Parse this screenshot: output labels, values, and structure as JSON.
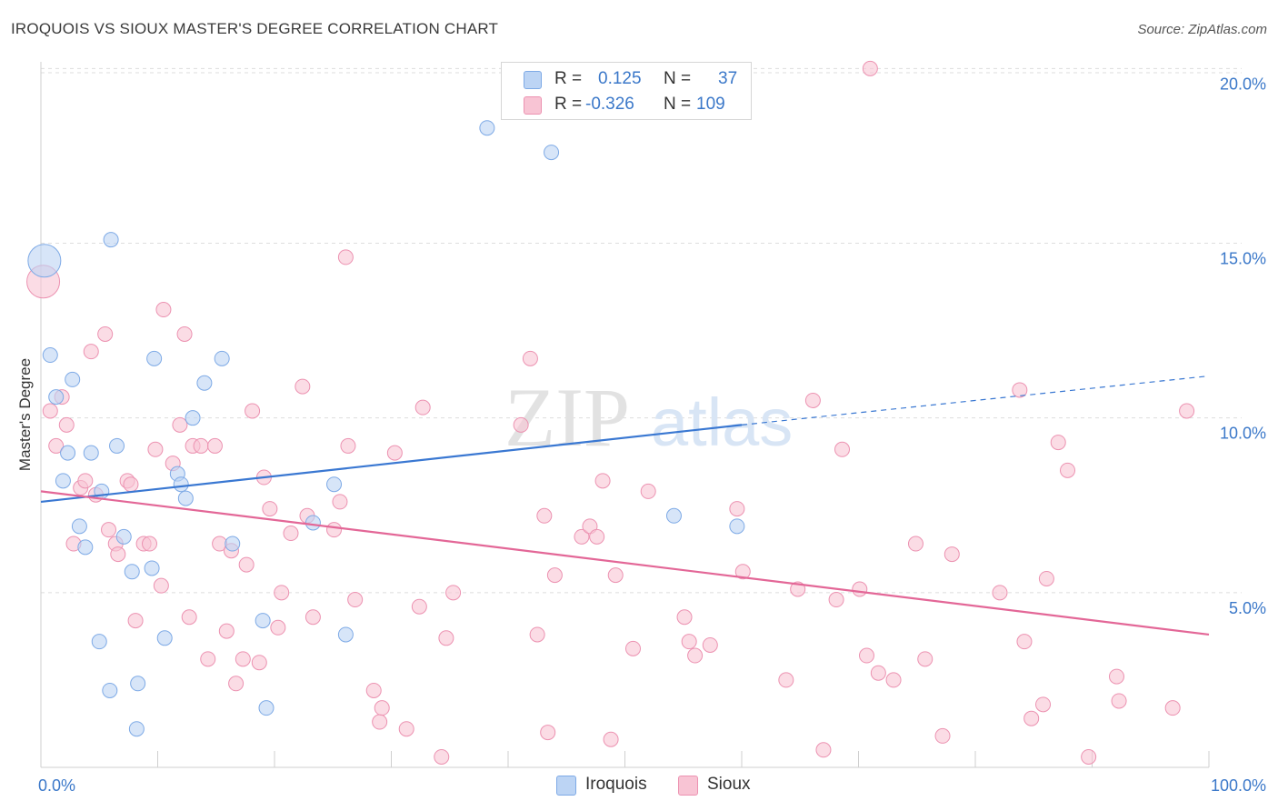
{
  "title": "IROQUOIS VS SIOUX MASTER'S DEGREE CORRELATION CHART",
  "source": "Source: ZipAtlas.com",
  "watermark": {
    "zip": "ZIP",
    "atlas": "atlas"
  },
  "colors": {
    "blue": "#3a78d2",
    "blue_fill": "#bcd4f4",
    "blue_stroke": "#7eaae6",
    "pink": "#e36797",
    "pink_fill": "#f8c4d4",
    "pink_stroke": "#ec92b1",
    "axis_label": "#3b78c9",
    "grid": "#dddddd"
  },
  "stats_legend": [
    {
      "r_label": "R =",
      "r_value": "0.125",
      "n_label": "N =",
      "n_value": "37"
    },
    {
      "r_label": "R =",
      "r_value": "-0.326",
      "n_label": "N =",
      "n_value": "109"
    }
  ],
  "legend": {
    "iroquois": "Iroquois",
    "sioux": "Sioux"
  },
  "chart_data": {
    "type": "scatter",
    "title": "IROQUOIS VS SIOUX MASTER'S DEGREE CORRELATION CHART",
    "xlabel": "",
    "ylabel": "Master's Degree",
    "xlim": [
      0,
      100
    ],
    "ylim": [
      0,
      20.4
    ],
    "x_tick_labels": [
      "0.0%",
      "100.0%"
    ],
    "y_ticks": [
      5,
      10,
      15,
      20
    ],
    "y_tick_labels": [
      "5.0%",
      "10.0%",
      "15.0%",
      "20.0%"
    ],
    "grid": true,
    "legend_position": "bottom",
    "series": [
      {
        "name": "Iroquois",
        "r": 0.125,
        "n": 37,
        "trend": {
          "x0": 0,
          "y0": 7.6,
          "x1": 60,
          "y1": 9.8,
          "dash_to_x": 100,
          "dash_to_y": 11.2
        },
        "points": [
          {
            "x": 0.3,
            "y": 14.5,
            "size": "large"
          },
          {
            "x": 0.8,
            "y": 11.8
          },
          {
            "x": 1.3,
            "y": 10.6
          },
          {
            "x": 2.7,
            "y": 11.1
          },
          {
            "x": 1.9,
            "y": 8.2
          },
          {
            "x": 2.3,
            "y": 9.0
          },
          {
            "x": 3.3,
            "y": 6.9
          },
          {
            "x": 3.8,
            "y": 6.3
          },
          {
            "x": 4.3,
            "y": 9.0
          },
          {
            "x": 5.0,
            "y": 3.6
          },
          {
            "x": 5.2,
            "y": 7.9
          },
          {
            "x": 6.0,
            "y": 15.1
          },
          {
            "x": 5.9,
            "y": 2.2
          },
          {
            "x": 6.5,
            "y": 9.2
          },
          {
            "x": 7.1,
            "y": 6.6
          },
          {
            "x": 7.8,
            "y": 5.6
          },
          {
            "x": 8.3,
            "y": 2.4
          },
          {
            "x": 8.2,
            "y": 1.1
          },
          {
            "x": 9.5,
            "y": 5.7
          },
          {
            "x": 9.7,
            "y": 11.7
          },
          {
            "x": 10.6,
            "y": 3.7
          },
          {
            "x": 11.7,
            "y": 8.4
          },
          {
            "x": 12.0,
            "y": 8.1
          },
          {
            "x": 12.4,
            "y": 7.7
          },
          {
            "x": 13.0,
            "y": 10.0
          },
          {
            "x": 14.0,
            "y": 11.0
          },
          {
            "x": 15.5,
            "y": 11.7
          },
          {
            "x": 16.4,
            "y": 6.4
          },
          {
            "x": 19.0,
            "y": 4.2
          },
          {
            "x": 19.3,
            "y": 1.7
          },
          {
            "x": 23.3,
            "y": 7.0
          },
          {
            "x": 25.1,
            "y": 8.1
          },
          {
            "x": 26.1,
            "y": 3.8
          },
          {
            "x": 38.2,
            "y": 18.3
          },
          {
            "x": 43.7,
            "y": 17.6
          },
          {
            "x": 54.2,
            "y": 7.2
          },
          {
            "x": 59.6,
            "y": 6.9
          }
        ]
      },
      {
        "name": "Sioux",
        "r": -0.326,
        "n": 109,
        "trend": {
          "x0": 0,
          "y0": 7.9,
          "x1": 100,
          "y1": 3.8
        },
        "points": [
          {
            "x": 0.2,
            "y": 13.9,
            "size": "large"
          },
          {
            "x": 0.8,
            "y": 10.2
          },
          {
            "x": 1.3,
            "y": 9.2
          },
          {
            "x": 1.8,
            "y": 10.6
          },
          {
            "x": 2.2,
            "y": 9.8
          },
          {
            "x": 2.8,
            "y": 6.4
          },
          {
            "x": 3.4,
            "y": 8.0
          },
          {
            "x": 3.8,
            "y": 8.2
          },
          {
            "x": 4.3,
            "y": 11.9
          },
          {
            "x": 4.7,
            "y": 7.8
          },
          {
            "x": 5.5,
            "y": 12.4
          },
          {
            "x": 5.8,
            "y": 6.8
          },
          {
            "x": 6.4,
            "y": 6.4
          },
          {
            "x": 6.6,
            "y": 6.1
          },
          {
            "x": 7.4,
            "y": 8.2
          },
          {
            "x": 7.7,
            "y": 8.1
          },
          {
            "x": 8.1,
            "y": 4.2
          },
          {
            "x": 8.8,
            "y": 6.4
          },
          {
            "x": 9.3,
            "y": 6.4
          },
          {
            "x": 9.8,
            "y": 9.1
          },
          {
            "x": 10.3,
            "y": 5.2
          },
          {
            "x": 10.5,
            "y": 13.1
          },
          {
            "x": 11.3,
            "y": 8.7
          },
          {
            "x": 11.9,
            "y": 9.8
          },
          {
            "x": 12.3,
            "y": 12.4
          },
          {
            "x": 12.7,
            "y": 4.3
          },
          {
            "x": 13.0,
            "y": 9.2
          },
          {
            "x": 13.7,
            "y": 9.2
          },
          {
            "x": 14.3,
            "y": 3.1
          },
          {
            "x": 14.9,
            "y": 9.2
          },
          {
            "x": 15.3,
            "y": 6.4
          },
          {
            "x": 15.9,
            "y": 3.9
          },
          {
            "x": 16.3,
            "y": 6.2
          },
          {
            "x": 16.7,
            "y": 2.4
          },
          {
            "x": 17.3,
            "y": 3.1
          },
          {
            "x": 17.6,
            "y": 5.8
          },
          {
            "x": 18.1,
            "y": 10.2
          },
          {
            "x": 18.7,
            "y": 3.0
          },
          {
            "x": 19.1,
            "y": 8.3
          },
          {
            "x": 19.6,
            "y": 7.4
          },
          {
            "x": 20.3,
            "y": 4.0
          },
          {
            "x": 20.6,
            "y": 5.0
          },
          {
            "x": 21.4,
            "y": 6.7
          },
          {
            "x": 22.4,
            "y": 10.9
          },
          {
            "x": 22.8,
            "y": 7.2
          },
          {
            "x": 23.3,
            "y": 4.3
          },
          {
            "x": 25.1,
            "y": 6.8
          },
          {
            "x": 25.6,
            "y": 7.6
          },
          {
            "x": 26.1,
            "y": 14.6
          },
          {
            "x": 26.3,
            "y": 9.2
          },
          {
            "x": 26.9,
            "y": 4.8
          },
          {
            "x": 28.5,
            "y": 2.2
          },
          {
            "x": 29.0,
            "y": 1.3
          },
          {
            "x": 29.2,
            "y": 1.7
          },
          {
            "x": 30.3,
            "y": 9.0
          },
          {
            "x": 31.3,
            "y": 1.1
          },
          {
            "x": 32.4,
            "y": 4.6
          },
          {
            "x": 32.7,
            "y": 10.3
          },
          {
            "x": 34.3,
            "y": 0.3
          },
          {
            "x": 34.7,
            "y": 3.7
          },
          {
            "x": 35.3,
            "y": 5.0
          },
          {
            "x": 41.1,
            "y": 9.8
          },
          {
            "x": 41.9,
            "y": 11.7
          },
          {
            "x": 42.5,
            "y": 3.8
          },
          {
            "x": 43.1,
            "y": 7.2
          },
          {
            "x": 43.4,
            "y": 1.0
          },
          {
            "x": 44.0,
            "y": 5.5
          },
          {
            "x": 46.3,
            "y": 6.6
          },
          {
            "x": 47.0,
            "y": 6.9
          },
          {
            "x": 47.6,
            "y": 6.6
          },
          {
            "x": 48.1,
            "y": 8.2
          },
          {
            "x": 48.8,
            "y": 0.8
          },
          {
            "x": 49.2,
            "y": 5.5
          },
          {
            "x": 50.7,
            "y": 3.4
          },
          {
            "x": 52.0,
            "y": 7.9
          },
          {
            "x": 55.1,
            "y": 4.3
          },
          {
            "x": 55.5,
            "y": 3.6
          },
          {
            "x": 56.0,
            "y": 3.2
          },
          {
            "x": 57.3,
            "y": 3.5
          },
          {
            "x": 59.6,
            "y": 7.4
          },
          {
            "x": 60.1,
            "y": 5.6
          },
          {
            "x": 63.8,
            "y": 2.5
          },
          {
            "x": 64.8,
            "y": 5.1
          },
          {
            "x": 66.1,
            "y": 10.5
          },
          {
            "x": 67.0,
            "y": 0.5
          },
          {
            "x": 68.1,
            "y": 4.8
          },
          {
            "x": 68.6,
            "y": 9.1
          },
          {
            "x": 70.1,
            "y": 5.1
          },
          {
            "x": 70.7,
            "y": 3.2
          },
          {
            "x": 71.0,
            "y": 20.0
          },
          {
            "x": 71.7,
            "y": 2.7
          },
          {
            "x": 73.0,
            "y": 2.5
          },
          {
            "x": 74.9,
            "y": 6.4
          },
          {
            "x": 75.7,
            "y": 3.1
          },
          {
            "x": 77.2,
            "y": 0.9
          },
          {
            "x": 78.0,
            "y": 6.1
          },
          {
            "x": 82.1,
            "y": 5.0
          },
          {
            "x": 83.8,
            "y": 10.8
          },
          {
            "x": 84.2,
            "y": 3.6
          },
          {
            "x": 84.8,
            "y": 1.4
          },
          {
            "x": 85.8,
            "y": 1.8
          },
          {
            "x": 86.1,
            "y": 5.4
          },
          {
            "x": 87.1,
            "y": 9.3
          },
          {
            "x": 87.9,
            "y": 8.5
          },
          {
            "x": 89.7,
            "y": 0.3
          },
          {
            "x": 92.1,
            "y": 2.6
          },
          {
            "x": 92.3,
            "y": 1.9
          },
          {
            "x": 96.9,
            "y": 1.7
          },
          {
            "x": 98.1,
            "y": 10.2
          }
        ]
      }
    ]
  }
}
